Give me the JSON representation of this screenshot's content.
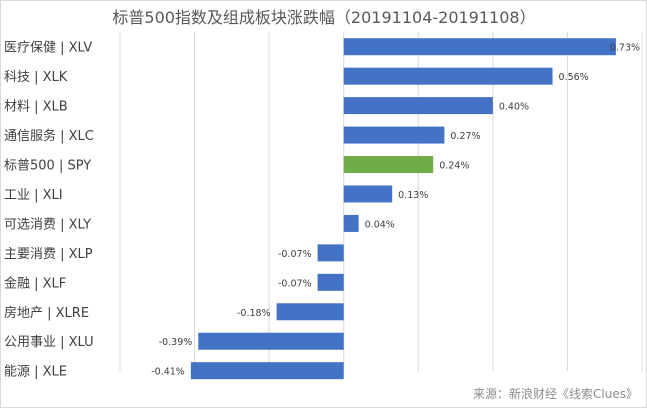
{
  "chart_data": {
    "type": "bar",
    "orientation": "horizontal",
    "title": "标普500指数及组成板块涨跌幅（20191104-20191108）",
    "categories": [
      "医疗保健 | XLV",
      "科技 | XLK",
      "材料 | XLB",
      "通信服务 | XLC",
      "标普500 | SPY",
      "工业 | XLI",
      "可选消费 | XLY",
      "主要消费 | XLP",
      "金融 | XLF",
      "房地产 | XLRE",
      "公用事业 | XLU",
      "能源 | XLE"
    ],
    "values": [
      0.73,
      0.56,
      0.4,
      0.27,
      0.24,
      0.13,
      0.04,
      -0.07,
      -0.07,
      -0.18,
      -0.39,
      -0.41
    ],
    "value_labels": [
      "0.73%",
      "0.56%",
      "0.40%",
      "0.27%",
      "0.24%",
      "0.13%",
      "0.04%",
      "-0.07%",
      "-0.07%",
      "-0.18%",
      "-0.39%",
      "-0.41%"
    ],
    "xlim": [
      -0.6,
      0.8
    ],
    "grid": true,
    "xlabel": "",
    "ylabel": "",
    "colors": {
      "default": "#4472c4",
      "highlight": "#70ad47",
      "grid": "#d9d9d9"
    },
    "highlight_category": "标普500 | SPY",
    "source": "来源：新浪财经《线索Clues》"
  }
}
